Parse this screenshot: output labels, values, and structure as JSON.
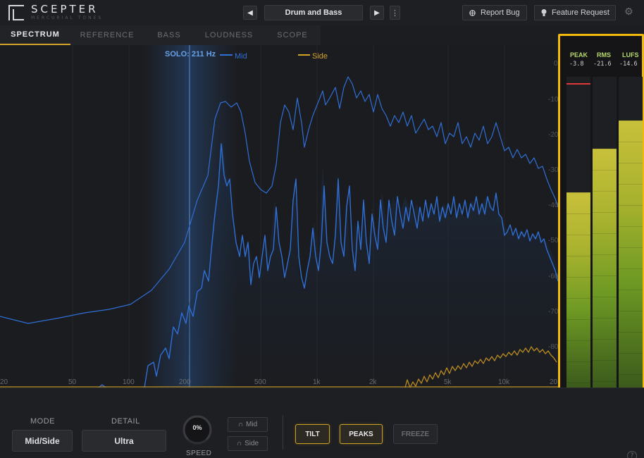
{
  "app": {
    "title": "SCEPTER",
    "subtitle": "MERCURIAL TONES"
  },
  "header": {
    "prev_icon": "◀",
    "next_icon": "▶",
    "preset_name": "Drum and Bass",
    "more_icon": "⋮",
    "report_bug_label": "Report Bug",
    "feature_request_label": "Feature Request",
    "settings_icon": "⚙"
  },
  "tabs": [
    {
      "label": "SPECTRUM",
      "active": true
    },
    {
      "label": "REFERENCE",
      "active": false
    },
    {
      "label": "BASS",
      "active": false
    },
    {
      "label": "LOUDNESS",
      "active": false
    },
    {
      "label": "SCOPE",
      "active": false
    }
  ],
  "spectrum": {
    "solo_label": "SOLO: 211 Hz",
    "legend": [
      {
        "name": "Mid",
        "color": "#2f6fd6"
      },
      {
        "name": "Side",
        "color": "#d4a42a"
      }
    ],
    "freq_labels": [
      "20",
      "50",
      "100",
      "200",
      "500",
      "1k",
      "2k",
      "5k",
      "10k",
      "20"
    ],
    "db_labels": [
      "0",
      "-10",
      "-20",
      "-30",
      "-40",
      "-50",
      "-60",
      "-70",
      "-80"
    ]
  },
  "meters": [
    {
      "label": "PEAK",
      "value": "-3.8",
      "level": 0.63
    },
    {
      "label": "RMS",
      "value": "-21.6",
      "level": 0.77
    },
    {
      "label": "LUFS",
      "value": "-14.6",
      "level": 0.86
    }
  ],
  "peak_hold": 0.98,
  "controls": {
    "mode_label": "MODE",
    "mode_value": "Mid/Side",
    "detail_label": "DETAIL",
    "detail_value": "Ultra",
    "speed_value": "0%",
    "speed_label": "SPEED",
    "listen_mid": "Mid",
    "listen_side": "Side",
    "tilt_label": "TILT",
    "peaks_label": "PEAKS",
    "freeze_label": "FREEZE",
    "help_icon": "?"
  },
  "colors": {
    "accent": "#d4a42a",
    "mid": "#2f6fd6",
    "side": "#d4a42a",
    "meter_highlight": "#f0b90b"
  }
}
